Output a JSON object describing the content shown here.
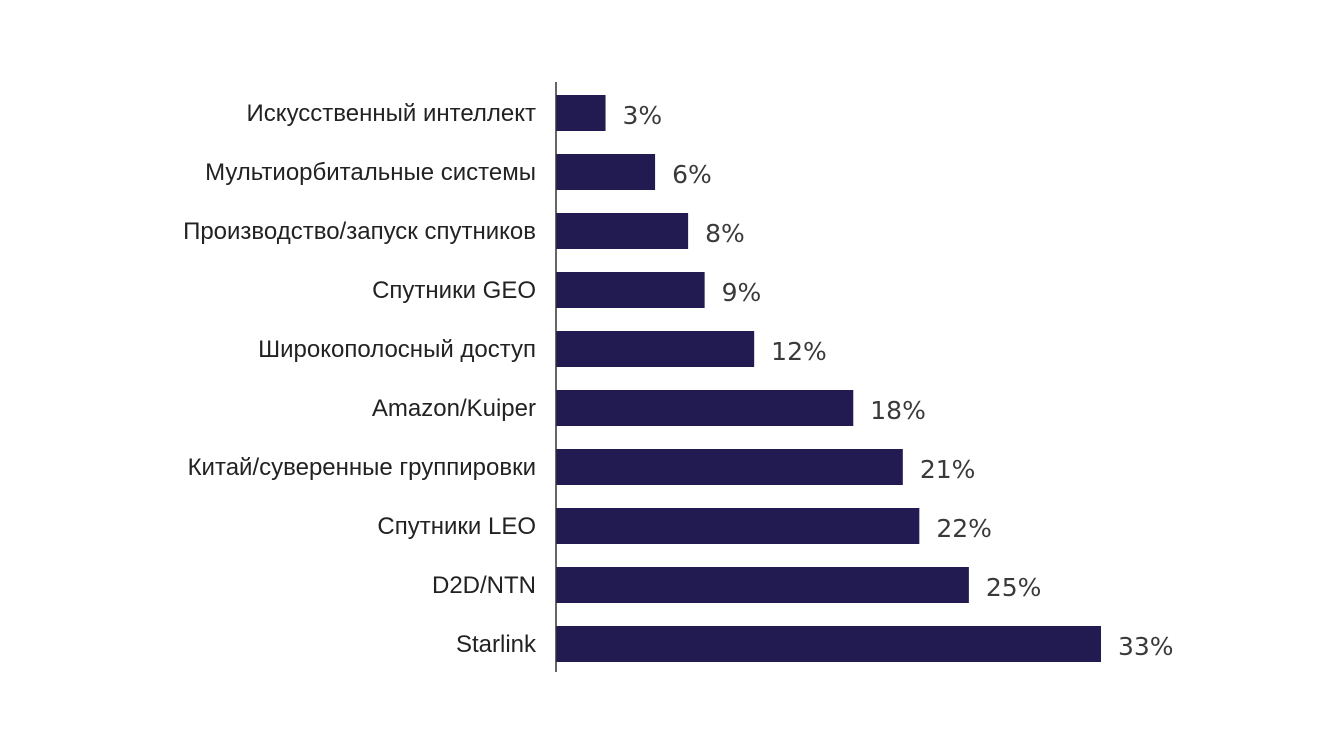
{
  "colors": {
    "bar": "#221b52",
    "axis": "#333333",
    "label": "#222222",
    "value_label": "#3a3a3a",
    "background": "#ffffff"
  },
  "chart_data": {
    "type": "bar",
    "orientation": "horizontal",
    "title": "",
    "xlabel": "",
    "ylabel": "",
    "grid": false,
    "legend": "none",
    "xlim": [
      0,
      33
    ],
    "value_suffix": "%",
    "categories": [
      "Искусственный интеллект",
      "Мультиорбитальные системы",
      "Производство/запуск спутников",
      "Спутники GEO",
      "Широкополосный доступ",
      "Amazon/Kuiper",
      "Китай/суверенные группировки",
      "Спутники LEO",
      "D2D/NTN",
      "Starlink"
    ],
    "values": [
      3,
      6,
      8,
      9,
      12,
      18,
      21,
      22,
      25,
      33
    ],
    "value_labels": [
      "3%",
      "6%",
      "8%",
      "9%",
      "12%",
      "18%",
      "21%",
      "22%",
      "25%",
      "33%"
    ]
  }
}
